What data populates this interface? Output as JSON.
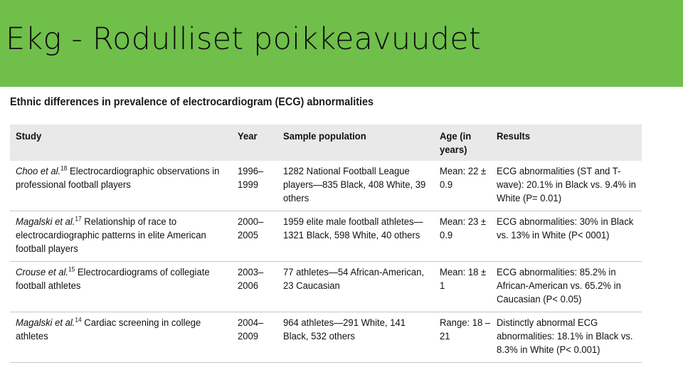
{
  "slide": {
    "title": "Ekg - Rodulliset poikkeavuudet",
    "banner_color": "#6fbf4a"
  },
  "table": {
    "title": "Ethnic differences in prevalence of electrocardiogram (ECG) abnormalities",
    "headers": [
      "Study",
      "Year",
      "Sample population",
      "Age (in years)",
      "Results"
    ],
    "rows": [
      {
        "author": "Choo et al.",
        "ref": "18",
        "study_title": "Electrocardiographic observations in professional football players",
        "year": "1996–1999",
        "sample": "1282 National Football League players—835 Black, 408 White, 39 others",
        "age": "Mean: 22 ± 0.9",
        "results": "ECG abnormalities (ST and T-wave): 20.1% in Black vs. 9.4% in White (P= 0.01)"
      },
      {
        "author": "Magalski et al.",
        "ref": "17",
        "study_title": "Relationship of race to electrocardiographic patterns in elite American football players",
        "year": "2000–2005",
        "sample": "1959 elite male football athletes—1321 Black, 598 White, 40 others",
        "age": "Mean: 23 ± 0.9",
        "results": "ECG abnormalities: 30% in Black vs. 13% in White (P< 0001)"
      },
      {
        "author": "Crouse et al.",
        "ref": "15",
        "study_title": "Electrocardiograms of collegiate football athletes",
        "year": "2003–2006",
        "sample": "77 athletes—54 African-American, 23 Caucasian",
        "age": "Mean: 18 ± 1",
        "results": "ECG abnormalities: 85.2% in African-American vs. 65.2% in Caucasian (P< 0.05)"
      },
      {
        "author": "Magalski et al.",
        "ref": "14",
        "study_title": "Cardiac screening in college athletes",
        "year": "2004–2009",
        "sample": "964 athletes—291 White, 141 Black, 532 others",
        "age": "Range: 18 –21",
        "results": "Distinctly abnormal ECG abnormalities: 18.1% in Black vs. 8.3% in White (P< 0.001)"
      }
    ]
  }
}
